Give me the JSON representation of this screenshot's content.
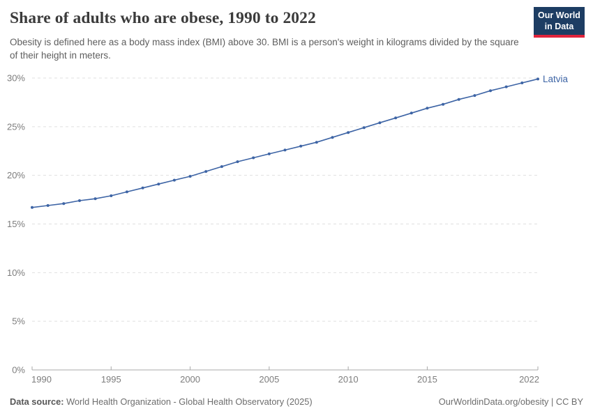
{
  "header": {
    "title": "Share of adults who are obese, 1990 to 2022",
    "subtitle": "Obesity is defined here as a body mass index (BMI) above 30. BMI is a person's weight in kilograms divided by the square of their height in meters.",
    "logo": {
      "line1": "Our World",
      "line2": "in Data"
    }
  },
  "chart_data": {
    "type": "line",
    "title": "Share of adults who are obese, 1990 to 2022",
    "xlabel": "",
    "ylabel": "",
    "xlim": [
      1990,
      2022
    ],
    "ylim": [
      0,
      30
    ],
    "grid": "horizontal-dashed",
    "legend_position": "end-of-line-label",
    "x": [
      1990,
      1991,
      1992,
      1993,
      1994,
      1995,
      1996,
      1997,
      1998,
      1999,
      2000,
      2001,
      2002,
      2003,
      2004,
      2005,
      2006,
      2007,
      2008,
      2009,
      2010,
      2011,
      2012,
      2013,
      2014,
      2015,
      2016,
      2017,
      2018,
      2019,
      2020,
      2021,
      2022
    ],
    "series": [
      {
        "name": "Latvia",
        "color": "#3d64a5",
        "values": [
          16.7,
          16.9,
          17.1,
          17.4,
          17.6,
          17.9,
          18.3,
          18.7,
          19.1,
          19.5,
          19.9,
          20.4,
          20.9,
          21.4,
          21.8,
          22.2,
          22.6,
          23.0,
          23.4,
          23.9,
          24.4,
          24.9,
          25.4,
          25.9,
          26.4,
          26.9,
          27.3,
          27.8,
          28.2,
          28.7,
          29.1,
          29.5,
          29.9
        ]
      }
    ],
    "yticks": [
      {
        "value": 0,
        "label": "0%"
      },
      {
        "value": 5,
        "label": "5%"
      },
      {
        "value": 10,
        "label": "10%"
      },
      {
        "value": 15,
        "label": "15%"
      },
      {
        "value": 20,
        "label": "20%"
      },
      {
        "value": 25,
        "label": "25%"
      },
      {
        "value": 30,
        "label": "30%"
      }
    ],
    "xticks": [
      {
        "value": 1990,
        "label": "1990"
      },
      {
        "value": 1995,
        "label": "1995"
      },
      {
        "value": 2000,
        "label": "2000"
      },
      {
        "value": 2005,
        "label": "2005"
      },
      {
        "value": 2010,
        "label": "2010"
      },
      {
        "value": 2015,
        "label": "2015"
      },
      {
        "value": 2022,
        "label": "2022"
      }
    ]
  },
  "footer": {
    "datasource_label": "Data source:",
    "datasource_value": " World Health Organization - Global Health Observatory (2025)",
    "link_text": "OurWorldinData.org/obesity",
    "separator": " | ",
    "license_text": "CC BY"
  },
  "colors": {
    "accent_line": "#3d64a5",
    "logo_background": "#1d3d63",
    "logo_underline": "#e0243c",
    "gridline": "#e0e0e0",
    "axis_line": "#a8a8a8",
    "tick_label": "#7d7d7d"
  }
}
